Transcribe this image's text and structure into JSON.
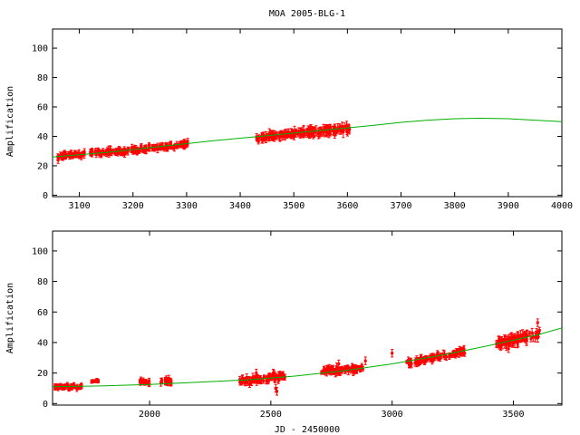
{
  "chart_data": [
    {
      "type": "scatter",
      "title": "MOA 2005-BLG-1",
      "xlabel": "",
      "ylabel": "Amplification",
      "xlim": [
        3050,
        4000
      ],
      "ylim": [
        -1,
        113
      ],
      "x_ticks": [
        3100,
        3200,
        3300,
        3400,
        3500,
        3600,
        3700,
        3800,
        3900,
        4000
      ],
      "y_ticks": [
        0,
        20,
        40,
        60,
        80,
        100
      ],
      "grid": false,
      "colors": {
        "points": "#ff0000",
        "model": "#00b000",
        "axis": "#000000"
      },
      "series": [
        {
          "kind": "points_with_error_bars",
          "segments": [
            {
              "x_range": [
                3055,
                3110
              ],
              "y_start": 25.5,
              "y_end": 28.5,
              "scatter": 1.5,
              "err": 2
            },
            {
              "x_range": [
                3120,
                3200
              ],
              "y_start": 28.5,
              "y_end": 30.5,
              "scatter": 1.6,
              "err": 2
            },
            {
              "x_range": [
                3200,
                3305
              ],
              "y_start": 30.5,
              "y_end": 35,
              "scatter": 1.5,
              "err": 2
            },
            {
              "x_range": [
                3430,
                3500
              ],
              "y_start": 39,
              "y_end": 42,
              "scatter": 1.6,
              "err": 2.5
            },
            {
              "x_range": [
                3500,
                3605
              ],
              "y_start": 42,
              "y_end": 45.5,
              "scatter": 1.8,
              "err": 3
            }
          ]
        },
        {
          "kind": "model_curve",
          "points": [
            [
              3050,
              26
            ],
            [
              3150,
              29
            ],
            [
              3250,
              33
            ],
            [
              3350,
              37
            ],
            [
              3450,
              40.5
            ],
            [
              3550,
              44
            ],
            [
              3650,
              47.5
            ],
            [
              3700,
              49.5
            ],
            [
              3750,
              51
            ],
            [
              3800,
              52
            ],
            [
              3850,
              52.3
            ],
            [
              3900,
              52
            ],
            [
              3950,
              51
            ],
            [
              4000,
              50
            ]
          ]
        }
      ]
    },
    {
      "type": "scatter",
      "title": "",
      "xlabel": "JD - 2450000",
      "ylabel": "Amplification",
      "xlim": [
        1600,
        3700
      ],
      "ylim": [
        -1,
        113
      ],
      "x_ticks": [
        2000,
        2500,
        3000,
        3500
      ],
      "y_ticks": [
        0,
        20,
        40,
        60,
        80,
        100
      ],
      "grid": false,
      "colors": {
        "points": "#ff0000",
        "model": "#00b000",
        "axis": "#000000"
      },
      "series": [
        {
          "kind": "points_with_error_bars",
          "segments": [
            {
              "x_range": [
                1610,
                1720
              ],
              "y_start": 11,
              "y_end": 11,
              "scatter": 1,
              "err": 1.5
            },
            {
              "x_range": [
                1760,
                1790
              ],
              "y_start": 14.5,
              "y_end": 15,
              "scatter": 0.5,
              "err": 1
            },
            {
              "x_range": [
                1960,
                2000
              ],
              "y_start": 14,
              "y_end": 14,
              "scatter": 1.5,
              "err": 1.5
            },
            {
              "x_range": [
                2040,
                2090
              ],
              "y_start": 14,
              "y_end": 14.5,
              "scatter": 1.5,
              "err": 2
            },
            {
              "x_range": [
                2370,
                2500
              ],
              "y_start": 14,
              "y_end": 16.5,
              "scatter": 2,
              "err": 2
            },
            {
              "x_range": [
                2500,
                2560
              ],
              "y_start": 17,
              "y_end": 18,
              "scatter": 2,
              "err": 2
            },
            {
              "x_range": [
                2700,
                2880
              ],
              "y_start": 21,
              "y_end": 23.5,
              "scatter": 1.8,
              "err": 2
            },
            {
              "x_range": [
                3060,
                3300
              ],
              "y_start": 26,
              "y_end": 34.5,
              "scatter": 1.5,
              "err": 2
            },
            {
              "x_range": [
                3430,
                3610
              ],
              "y_start": 39.5,
              "y_end": 45.5,
              "scatter": 1.8,
              "err": 3
            }
          ],
          "outliers": [
            [
              2440,
              20
            ],
            [
              2520,
              10
            ],
            [
              2525,
              8
            ],
            [
              2510,
              20
            ],
            [
              2780,
              26
            ],
            [
              2890,
              28
            ],
            [
              3480,
              36
            ],
            [
              3600,
              53
            ],
            [
              3000,
              33
            ]
          ]
        },
        {
          "kind": "model_curve",
          "points": [
            [
              1600,
              11
            ],
            [
              1800,
              11.5
            ],
            [
              2000,
              12.5
            ],
            [
              2200,
              14
            ],
            [
              2400,
              15.5
            ],
            [
              2600,
              18
            ],
            [
              2800,
              21.5
            ],
            [
              3000,
              26
            ],
            [
              3200,
              31.5
            ],
            [
              3400,
              38
            ],
            [
              3500,
              41.5
            ],
            [
              3600,
              45
            ],
            [
              3700,
              49.5
            ]
          ]
        }
      ]
    }
  ]
}
